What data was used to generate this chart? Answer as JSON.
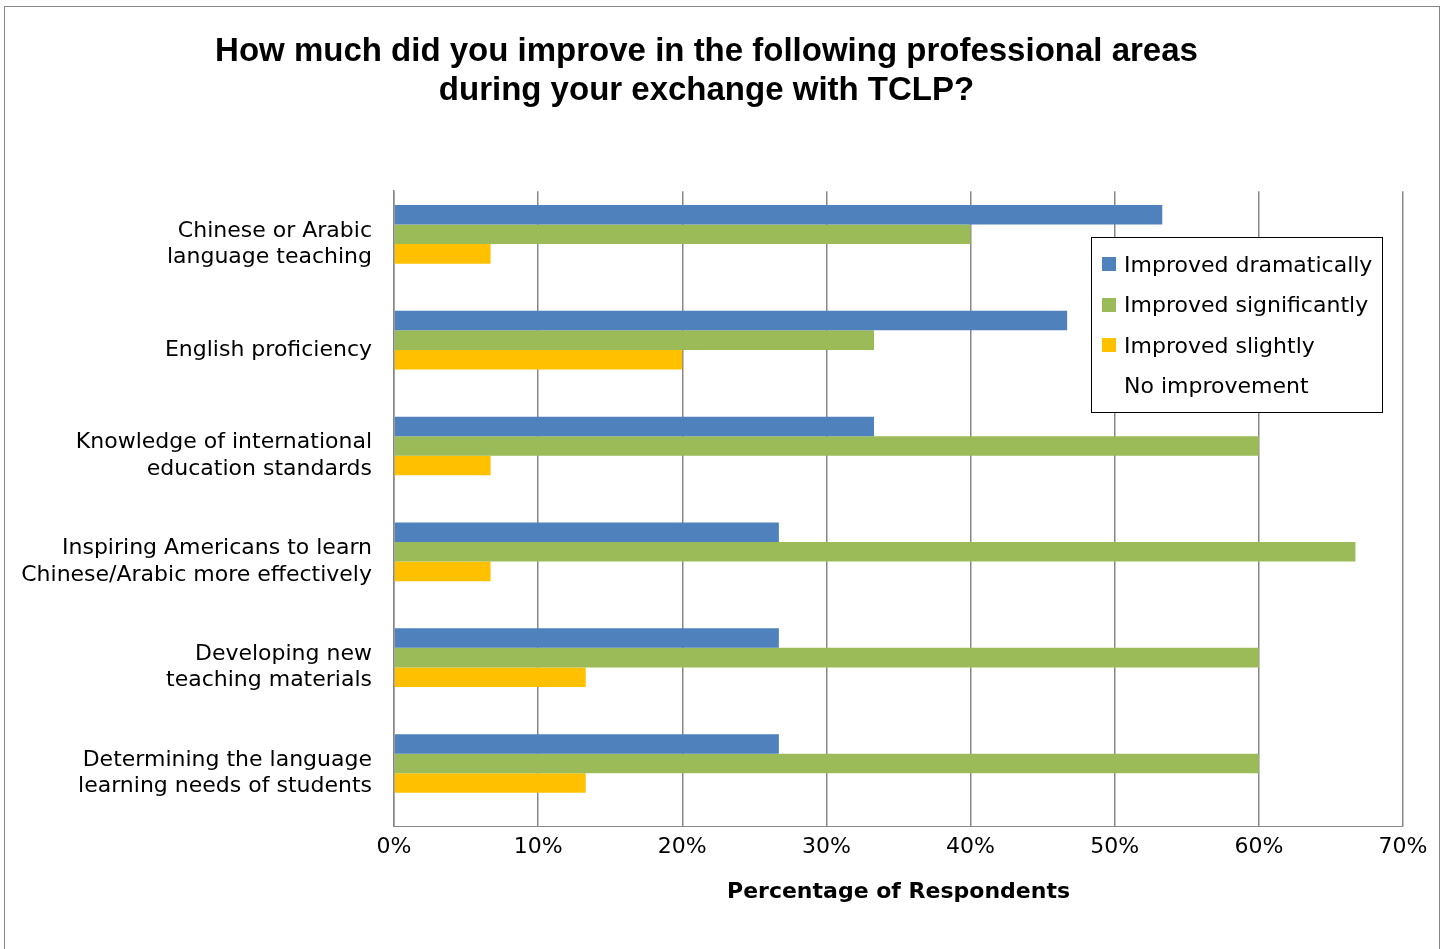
{
  "chart_data": {
    "type": "bar",
    "orientation": "horizontal",
    "title": "How much did you improve in the following professional areas during your exchange with TCLP?",
    "xlabel": "Percentage of Respondents",
    "categories": [
      "Chinese or Arabic language teaching",
      "English proficiency",
      "Knowledge of international education standards",
      "Inspiring Americans to learn Chinese/Arabic more effectively",
      "Developing new teaching materials",
      "Determining the language learning needs of students"
    ],
    "series": [
      {
        "name": "Improved dramatically",
        "color": "#4f81bd",
        "values": [
          53.3,
          46.7,
          33.3,
          26.7,
          26.7,
          26.7
        ]
      },
      {
        "name": "Improved significantly",
        "color": "#9bbb59",
        "values": [
          40,
          33.3,
          60,
          66.7,
          60,
          60
        ]
      },
      {
        "name": "Improved slightly",
        "color": "#ffc000",
        "values": [
          6.7,
          20,
          6.7,
          6.7,
          13.3,
          13.3
        ]
      },
      {
        "name": "No improvement",
        "values": [
          0,
          0,
          0,
          0,
          0,
          0
        ]
      }
    ],
    "xlim": [
      0,
      70
    ],
    "xticks": [
      {
        "value": 0,
        "label": "0%"
      },
      {
        "value": 10,
        "label": "10%"
      },
      {
        "value": 20,
        "label": "20%"
      },
      {
        "value": 30,
        "label": "30%"
      },
      {
        "value": 40,
        "label": "40%"
      },
      {
        "value": 50,
        "label": "50%"
      },
      {
        "value": 60,
        "label": "60%"
      },
      {
        "value": 70,
        "label": "70%"
      }
    ],
    "grid": "x",
    "legend": "top right"
  }
}
